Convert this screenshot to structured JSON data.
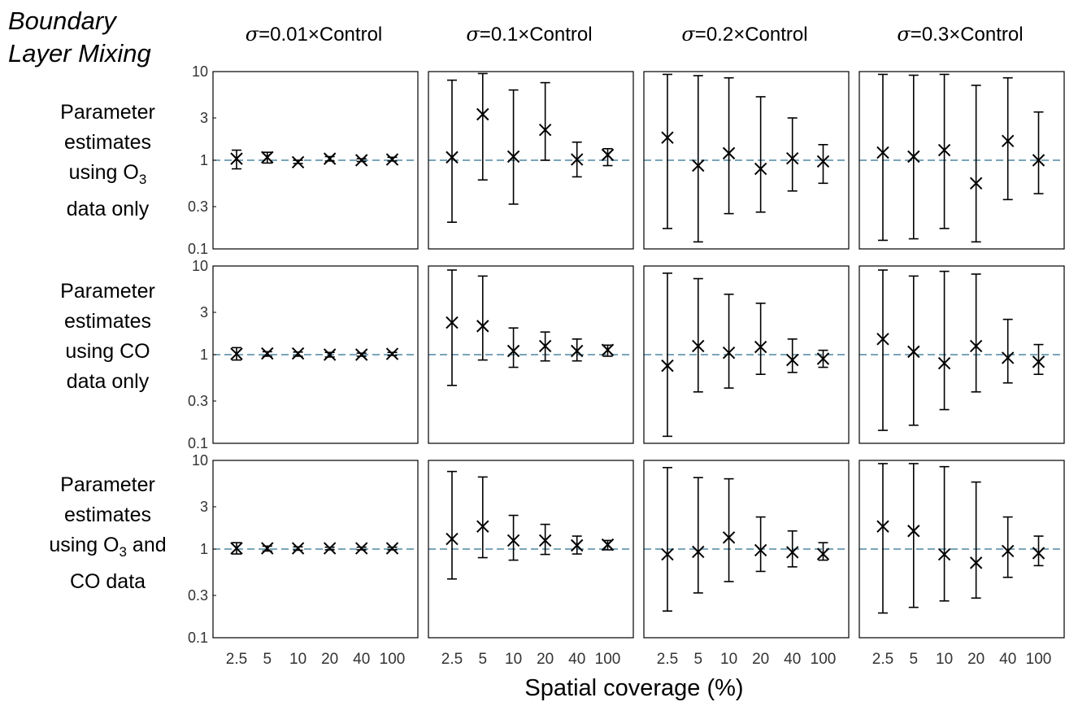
{
  "figure": {
    "corner_title": [
      "Boundary",
      "Layer Mixing"
    ],
    "columns": [
      {
        "prefix": "=0.01",
        "times": "×",
        "suffix": "Control",
        "sigma": "σ"
      },
      {
        "prefix": "=0.1",
        "times": "×",
        "suffix": "Control",
        "sigma": "σ"
      },
      {
        "prefix": "=0.2",
        "times": "×",
        "suffix": "Control",
        "sigma": "σ"
      },
      {
        "prefix": "=0.3",
        "times": "×",
        "suffix": "Control",
        "sigma": "σ"
      }
    ],
    "rows": [
      {
        "lines": [
          "Parameter",
          "estimates",
          "using O",
          "data only"
        ],
        "sub": "3"
      },
      {
        "lines": [
          "Parameter",
          "estimates",
          "using CO",
          "data only"
        ]
      },
      {
        "lines": [
          "Parameter",
          "estimates",
          "using O",
          "CO data"
        ],
        "sub": "3",
        "after_sub": " and"
      }
    ],
    "xlabel": "Spatial coverage (%)"
  },
  "chart_data": {
    "type": "scatter",
    "yscale": "log",
    "ylim": [
      0.1,
      10
    ],
    "yticks": [
      "10",
      "3",
      "1",
      "0.3",
      "0.1"
    ],
    "ytick_values": [
      10,
      3,
      1,
      0.3,
      0.1
    ],
    "categories": [
      "2.5",
      "5",
      "10",
      "20",
      "40",
      "100"
    ],
    "reference_line": 1,
    "marker": "x with error bars",
    "colors": {
      "reference_line": "#2a6f8f",
      "marks": "#000000"
    },
    "panels": [
      {
        "row": 0,
        "col": 0,
        "center": [
          1.04,
          1.08,
          0.95,
          1.04,
          1.0,
          1.02
        ],
        "lower": [
          0.8,
          0.93,
          0.92,
          0.98,
          0.97,
          0.98
        ],
        "upper": [
          1.3,
          1.23,
          1.0,
          1.1,
          1.04,
          1.08
        ]
      },
      {
        "row": 0,
        "col": 1,
        "center": [
          1.08,
          3.3,
          1.1,
          2.2,
          1.02,
          1.15
        ],
        "lower": [
          0.2,
          0.6,
          0.32,
          1.0,
          0.65,
          0.87
        ],
        "upper": [
          8.0,
          9.5,
          6.2,
          7.5,
          1.6,
          1.35
        ]
      },
      {
        "row": 0,
        "col": 2,
        "center": [
          1.8,
          0.87,
          1.2,
          0.8,
          1.05,
          0.97
        ],
        "lower": [
          0.17,
          0.12,
          0.25,
          0.26,
          0.45,
          0.55
        ],
        "upper": [
          9.3,
          9.0,
          8.5,
          5.2,
          3.0,
          1.5
        ]
      },
      {
        "row": 0,
        "col": 3,
        "center": [
          1.22,
          1.1,
          1.3,
          0.55,
          1.65,
          1.0
        ],
        "lower": [
          0.125,
          0.13,
          0.17,
          0.12,
          0.36,
          0.42
        ],
        "upper": [
          9.3,
          9.1,
          9.3,
          7.0,
          8.5,
          3.5
        ]
      },
      {
        "row": 1,
        "col": 0,
        "center": [
          1.02,
          1.03,
          1.03,
          1.0,
          1.0,
          1.02
        ],
        "lower": [
          0.87,
          0.96,
          0.96,
          0.94,
          0.96,
          0.98
        ],
        "upper": [
          1.2,
          1.08,
          1.07,
          1.06,
          1.04,
          1.06
        ]
      },
      {
        "row": 1,
        "col": 1,
        "center": [
          2.3,
          2.1,
          1.1,
          1.25,
          1.1,
          1.13
        ],
        "lower": [
          0.45,
          0.87,
          0.72,
          0.85,
          0.85,
          0.96
        ],
        "upper": [
          9.0,
          7.7,
          2.0,
          1.8,
          1.5,
          1.28
        ]
      },
      {
        "row": 1,
        "col": 2,
        "center": [
          0.75,
          1.25,
          1.05,
          1.22,
          0.87,
          0.9
        ],
        "lower": [
          0.12,
          0.38,
          0.42,
          0.6,
          0.63,
          0.72
        ],
        "upper": [
          8.3,
          7.2,
          4.8,
          3.8,
          1.5,
          1.12
        ]
      },
      {
        "row": 1,
        "col": 3,
        "center": [
          1.5,
          1.08,
          0.8,
          1.25,
          0.92,
          0.83
        ],
        "lower": [
          0.14,
          0.16,
          0.24,
          0.38,
          0.48,
          0.6
        ],
        "upper": [
          9.0,
          7.7,
          8.7,
          8.1,
          2.5,
          1.3
        ]
      },
      {
        "row": 2,
        "col": 0,
        "center": [
          1.02,
          1.02,
          1.02,
          1.02,
          1.02,
          1.02
        ],
        "lower": [
          0.88,
          0.95,
          0.97,
          0.98,
          0.98,
          0.98
        ],
        "upper": [
          1.18,
          1.08,
          1.06,
          1.05,
          1.05,
          1.05
        ]
      },
      {
        "row": 2,
        "col": 1,
        "center": [
          1.3,
          1.8,
          1.25,
          1.25,
          1.1,
          1.12
        ],
        "lower": [
          0.46,
          0.8,
          0.75,
          0.87,
          0.88,
          0.98
        ],
        "upper": [
          7.5,
          6.5,
          2.4,
          1.9,
          1.4,
          1.25
        ]
      },
      {
        "row": 2,
        "col": 2,
        "center": [
          0.87,
          0.93,
          1.35,
          0.97,
          0.92,
          0.88
        ],
        "lower": [
          0.2,
          0.32,
          0.43,
          0.56,
          0.63,
          0.75
        ],
        "upper": [
          8.3,
          6.4,
          6.2,
          2.3,
          1.6,
          1.18
        ]
      },
      {
        "row": 2,
        "col": 3,
        "center": [
          1.8,
          1.6,
          0.87,
          0.7,
          0.95,
          0.9
        ],
        "lower": [
          0.19,
          0.22,
          0.26,
          0.28,
          0.48,
          0.65
        ],
        "upper": [
          9.2,
          9.2,
          8.5,
          5.7,
          2.3,
          1.4
        ]
      }
    ]
  }
}
